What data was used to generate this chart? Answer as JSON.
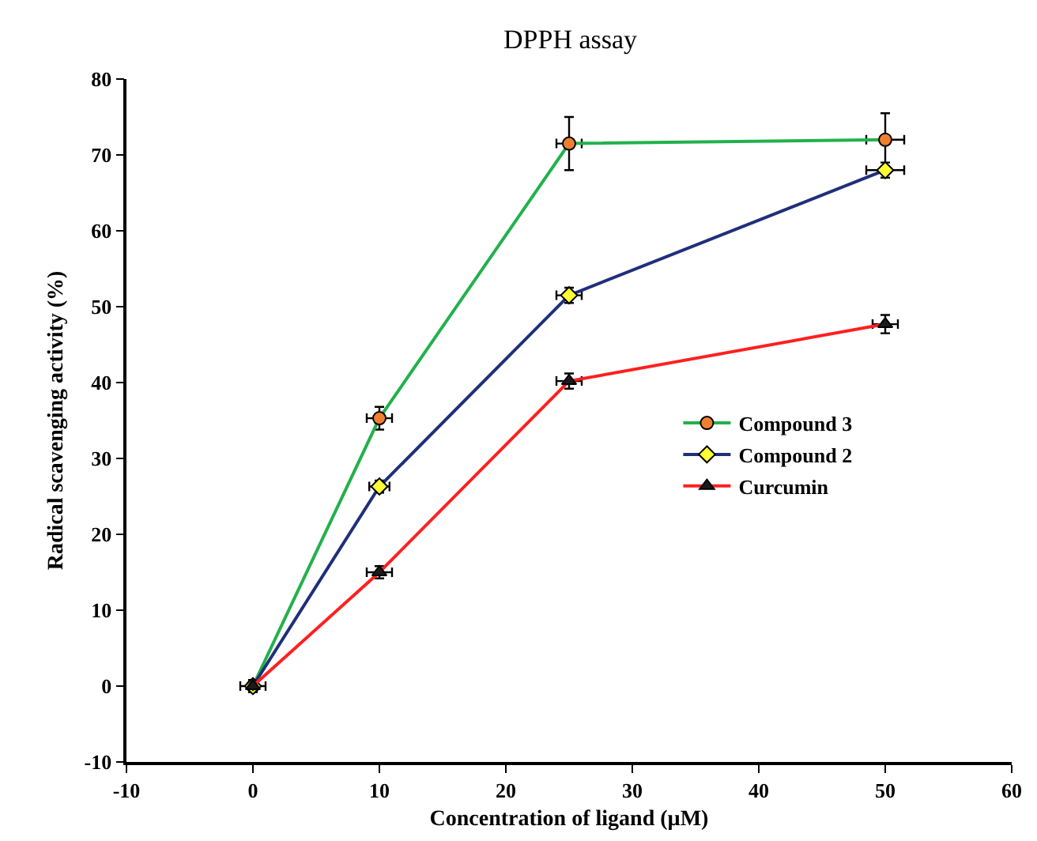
{
  "chart_data": {
    "type": "line",
    "title": "DPPH assay",
    "xlabel": "Concentration of ligand (µM)",
    "ylabel": "Radical scavenging activity (%)",
    "x": [
      0,
      10,
      25,
      50
    ],
    "series": [
      {
        "name": "Compound 3",
        "color": "#22b14c",
        "colors": [
          "#f08030",
          "#f08030",
          "#f08030",
          "#f08030"
        ],
        "marker": "circle",
        "values": [
          0,
          35.3,
          71.5,
          72
        ],
        "errors": [
          0.8,
          1.5,
          3.5,
          3.5
        ],
        "xerrors": [
          1,
          1,
          1,
          1.5
        ]
      },
      {
        "name": "Compound 2",
        "color": "#1f2f7a",
        "colors": [
          "#ffff33",
          "#ffff33",
          "#ffff33",
          "#ffff33"
        ],
        "marker": "diamond",
        "values": [
          0,
          26.3,
          51.5,
          68
        ],
        "errors": [
          null,
          0.8,
          1,
          1
        ],
        "xerrors": [
          null,
          0.8,
          1,
          1.5
        ]
      },
      {
        "name": "Curcumin",
        "color": "#ff2020",
        "colors": [
          "#1a1a1a",
          "#1a1a1a",
          "#1a1a1a",
          "#1a1a1a"
        ],
        "marker": "triangle",
        "values": [
          0,
          15,
          40.2,
          47.7
        ],
        "errors": [
          null,
          0.8,
          1,
          1.2
        ],
        "xerrors": [
          null,
          1,
          1,
          1
        ]
      }
    ],
    "xlim": [
      -10,
      60
    ],
    "xticks": [
      -10,
      0,
      10,
      20,
      30,
      40,
      50,
      60
    ],
    "ylim": [
      -10,
      80
    ],
    "yticks": [
      -10,
      0,
      10,
      20,
      30,
      40,
      50,
      60,
      70,
      80
    ],
    "grid": false,
    "legend": "right",
    "line_style": "solid"
  }
}
